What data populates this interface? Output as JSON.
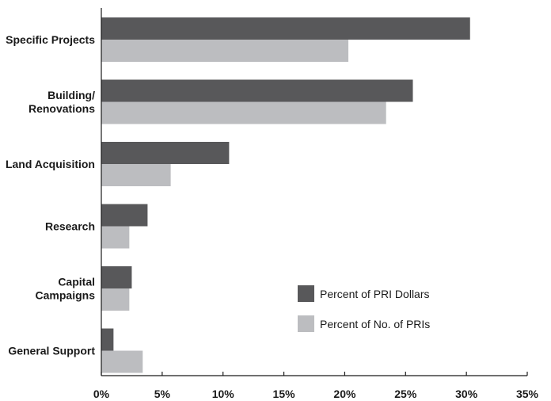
{
  "chart_data": {
    "type": "bar",
    "orientation": "horizontal",
    "categories": [
      [
        "Specific Projects"
      ],
      [
        "Building/",
        "Renovations"
      ],
      [
        "Land Acquisition"
      ],
      [
        "Research"
      ],
      [
        "Capital",
        "Campaigns"
      ],
      [
        "General Support"
      ]
    ],
    "series": [
      {
        "name": "Percent of PRI Dollars",
        "color": "#58585a",
        "values": [
          30.3,
          25.6,
          10.5,
          3.8,
          2.5,
          1.0
        ]
      },
      {
        "name": "Percent of No. of PRIs",
        "color": "#bcbdc0",
        "values": [
          20.3,
          23.4,
          5.7,
          2.3,
          2.3,
          3.4
        ]
      }
    ],
    "xlim": [
      0,
      35
    ],
    "xticks": [
      0,
      5,
      10,
      15,
      20,
      25,
      30,
      35
    ],
    "xtick_labels": [
      "0%",
      "5%",
      "10%",
      "15%",
      "20%",
      "25%",
      "30%",
      "35%"
    ],
    "title": "",
    "xlabel": "",
    "ylabel": "",
    "grid": false,
    "legend_position": "lower-right"
  }
}
